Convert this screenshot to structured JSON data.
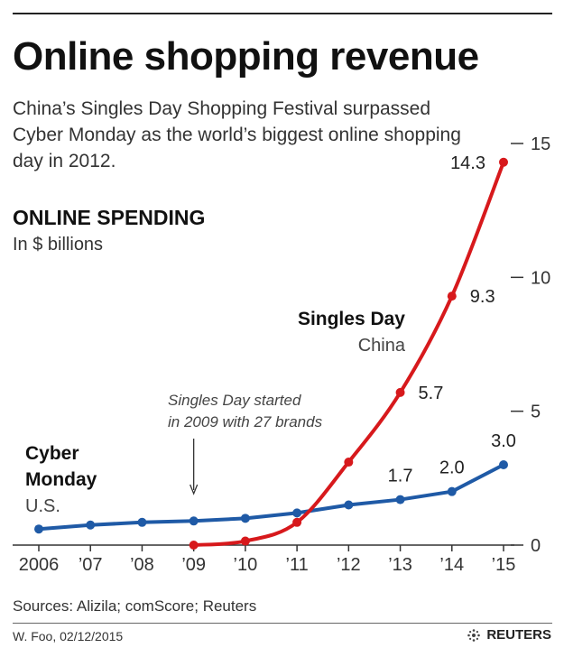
{
  "header": {
    "title": "Online shopping revenue",
    "subtitle": "China’s Singles Day Shopping Festival surpassed Cyber Monday as the world’s biggest online shopping day in 2012."
  },
  "metric": {
    "label": "ONLINE SPENDING",
    "unit": "In $ billions"
  },
  "footer": {
    "sources": "Sources: Alizila; comScore; Reuters",
    "credit": "W. Foo, 02/12/2015",
    "brand": "REUTERS"
  },
  "colors": {
    "cyber": "#1f5aa6",
    "singles": "#d7191c",
    "axis": "#333333"
  },
  "chart_data": {
    "type": "line",
    "x": [
      2006,
      2007,
      2008,
      2009,
      2010,
      2011,
      2012,
      2013,
      2014,
      2015
    ],
    "x_tick_labels": [
      "2006",
      "’07",
      "’08",
      "’09",
      "’10",
      "’11",
      "’12",
      "’13",
      "’14",
      "’15"
    ],
    "ylim": [
      0,
      15
    ],
    "y_ticks": [
      0,
      5,
      10,
      15
    ],
    "y_tick_labels": [
      "0",
      "5",
      "10",
      "15"
    ],
    "y_axis_side": "right",
    "series": [
      {
        "key": "cyber",
        "name": "Cyber Monday",
        "name_lines": [
          "Cyber",
          "Monday"
        ],
        "sublabel": "U.S.",
        "x": [
          2006,
          2007,
          2008,
          2009,
          2010,
          2011,
          2012,
          2013,
          2014,
          2015
        ],
        "values": [
          0.6,
          0.75,
          0.85,
          0.9,
          1.0,
          1.2,
          1.5,
          1.7,
          2.0,
          3.0
        ],
        "data_labels": [
          {
            "x": 2013,
            "text": "1.7"
          },
          {
            "x": 2014,
            "text": "2.0"
          },
          {
            "x": 2015,
            "text": "3.0"
          }
        ]
      },
      {
        "key": "singles",
        "name": "Singles Day",
        "name_lines": [
          "Singles Day"
        ],
        "sublabel": "China",
        "x": [
          2009,
          2010,
          2011,
          2012,
          2013,
          2014,
          2015
        ],
        "values": [
          0.0,
          0.15,
          0.85,
          3.1,
          5.7,
          9.3,
          14.3
        ],
        "data_labels": [
          {
            "x": 2013,
            "text": "5.7"
          },
          {
            "x": 2014,
            "text": "9.3"
          },
          {
            "x": 2015,
            "text": "14.3"
          }
        ]
      }
    ],
    "annotation": {
      "lines": [
        "Singles Day started",
        "in 2009 with 27 brands"
      ],
      "points_to_x": 2009
    }
  }
}
